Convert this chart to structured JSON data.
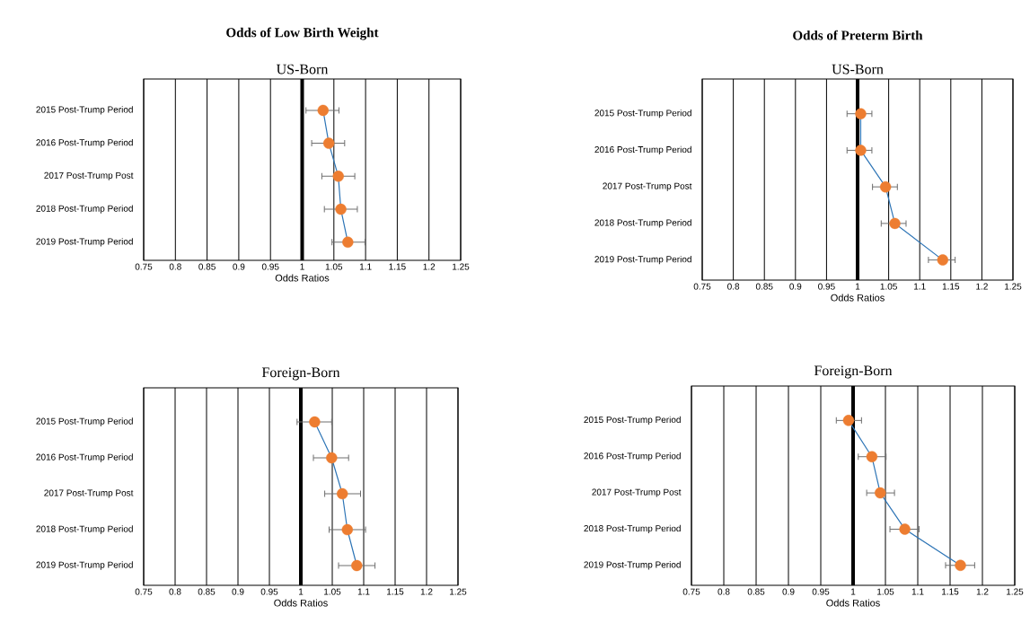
{
  "chart_data": [
    {
      "type": "line",
      "orientation": "horizontal",
      "title": "Odds of Low Birth Weight",
      "subtitle": "US-Born",
      "xlabel": "Odds Ratios",
      "categories": [
        "2015 Post-Trump Period",
        "2016 Post-Trump Period",
        "2017 Post-Trump Post",
        "2018 Post-Trump Period",
        "2019 Post-Trump Period"
      ],
      "values": [
        1.033,
        1.042,
        1.057,
        1.061,
        1.072
      ],
      "errors": [
        [
          1.006,
          1.058
        ],
        [
          1.015,
          1.067
        ],
        [
          1.031,
          1.083
        ],
        [
          1.035,
          1.087
        ],
        [
          1.047,
          1.099
        ]
      ],
      "color": "#2e75b6",
      "colors": [
        "#ed7d31",
        "#ed7d31",
        "#ed7d31",
        "#ed7d31",
        "#ed7d31"
      ],
      "marker": "circle",
      "grid": "x",
      "xlim": [
        0.75,
        1.25
      ],
      "xticks": [
        0.75,
        0.8,
        0.85,
        0.9,
        0.95,
        1,
        1.05,
        1.1,
        1.15,
        1.2,
        1.25
      ],
      "ref_lines": [
        {
          "axis": "x",
          "value": 1,
          "color": "#000000"
        }
      ]
    },
    {
      "type": "line",
      "orientation": "horizontal",
      "title": "Odds of Preterm Birth",
      "subtitle": "US-Born",
      "xlabel": "Odds Ratios",
      "categories": [
        "2015 Post-Trump Period",
        "2016 Post-Trump Period",
        "2017 Post-Trump Post",
        "2018 Post-Trump Period",
        "2019 Post-Trump Period"
      ],
      "values": [
        1.005,
        1.005,
        1.045,
        1.06,
        1.137
      ],
      "errors": [
        [
          0.983,
          1.023
        ],
        [
          0.983,
          1.023
        ],
        [
          1.024,
          1.064
        ],
        [
          1.038,
          1.078
        ],
        [
          1.114,
          1.157
        ]
      ],
      "color": "#2e75b6",
      "colors": [
        "#ed7d31",
        "#ed7d31",
        "#ed7d31",
        "#ed7d31",
        "#ed7d31"
      ],
      "marker": "circle",
      "grid": "x",
      "xlim": [
        0.75,
        1.25
      ],
      "xticks": [
        0.75,
        0.8,
        0.85,
        0.9,
        0.95,
        1,
        1.05,
        1.1,
        1.15,
        1.2,
        1.25
      ],
      "ref_lines": [
        {
          "axis": "x",
          "value": 1,
          "color": "#000000"
        }
      ]
    },
    {
      "type": "line",
      "orientation": "horizontal",
      "title": "Foreign-Born",
      "xlabel": "Odds Ratios",
      "categories": [
        "2015 Post-Trump Period",
        "2016 Post-Trump Period",
        "2017 Post-Trump Post",
        "2018 Post-Trump Period",
        "2019 Post-Trump Period"
      ],
      "values": [
        1.022,
        1.049,
        1.066,
        1.074,
        1.089
      ],
      "errors": [
        [
          0.994,
          1.049
        ],
        [
          1.02,
          1.076
        ],
        [
          1.038,
          1.095
        ],
        [
          1.045,
          1.103
        ],
        [
          1.06,
          1.118
        ]
      ],
      "color": "#2e75b6",
      "colors": [
        "#ed7d31",
        "#ed7d31",
        "#ed7d31",
        "#ed7d31",
        "#ed7d31"
      ],
      "marker": "circle",
      "grid": "x",
      "xlim": [
        0.75,
        1.25
      ],
      "xticks": [
        0.75,
        0.8,
        0.85,
        0.9,
        0.95,
        1,
        1.05,
        1.1,
        1.15,
        1.2,
        1.25
      ],
      "ref_lines": [
        {
          "axis": "x",
          "value": 1,
          "color": "#000000"
        }
      ]
    },
    {
      "type": "line",
      "orientation": "horizontal",
      "title": "Foreign-Born",
      "xlabel": "Odds Ratios",
      "categories": [
        "2015 Post-Trump Period",
        "2016 Post-Trump Period",
        "2017 Post-Trump Post",
        "2018 Post-Trump Period",
        "2019 Post-Trump Period"
      ],
      "values": [
        0.993,
        1.029,
        1.042,
        1.08,
        1.166
      ],
      "errors": [
        [
          0.974,
          1.013
        ],
        [
          1.008,
          1.051
        ],
        [
          1.021,
          1.064
        ],
        [
          1.057,
          1.102
        ],
        [
          1.143,
          1.188
        ]
      ],
      "color": "#2e75b6",
      "colors": [
        "#ed7d31",
        "#ed7d31",
        "#ed7d31",
        "#ed7d31",
        "#ed7d31"
      ],
      "marker": "circle",
      "grid": "x",
      "xlim": [
        0.75,
        1.25
      ],
      "xticks": [
        0.75,
        0.8,
        0.85,
        0.9,
        0.95,
        1,
        1.05,
        1.1,
        1.15,
        1.2,
        1.25
      ],
      "ref_lines": [
        {
          "axis": "x",
          "value": 1,
          "color": "#000000"
        }
      ]
    }
  ]
}
